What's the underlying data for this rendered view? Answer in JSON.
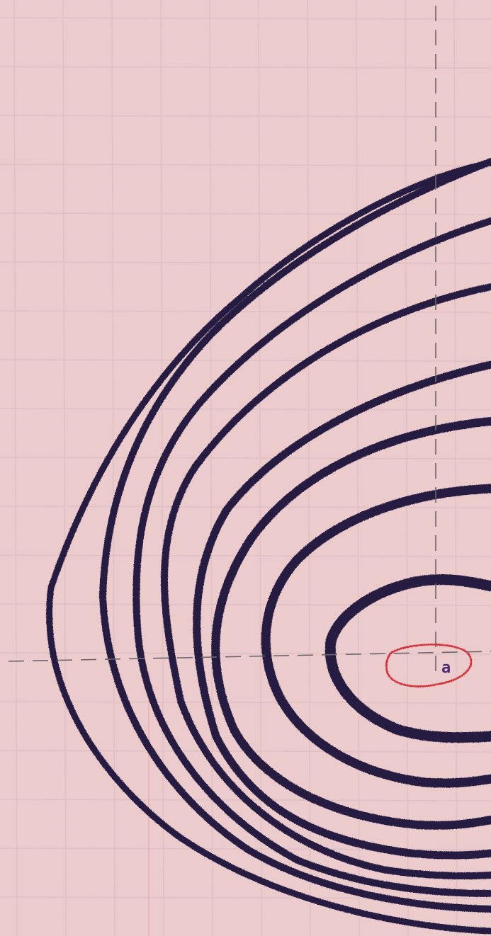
{
  "paper": {
    "background": "#ebcbcc",
    "grid_color": "#dfc0c3",
    "margin_line_color": "#e8a9ae"
  },
  "axes": {
    "color": "#6b6669",
    "style": "dashed"
  },
  "contours": {
    "color": "#261b42",
    "count": 8
  },
  "minimum_marker": {
    "color": "#d3323a",
    "label": "a",
    "label_color": "#4d2a72"
  }
}
